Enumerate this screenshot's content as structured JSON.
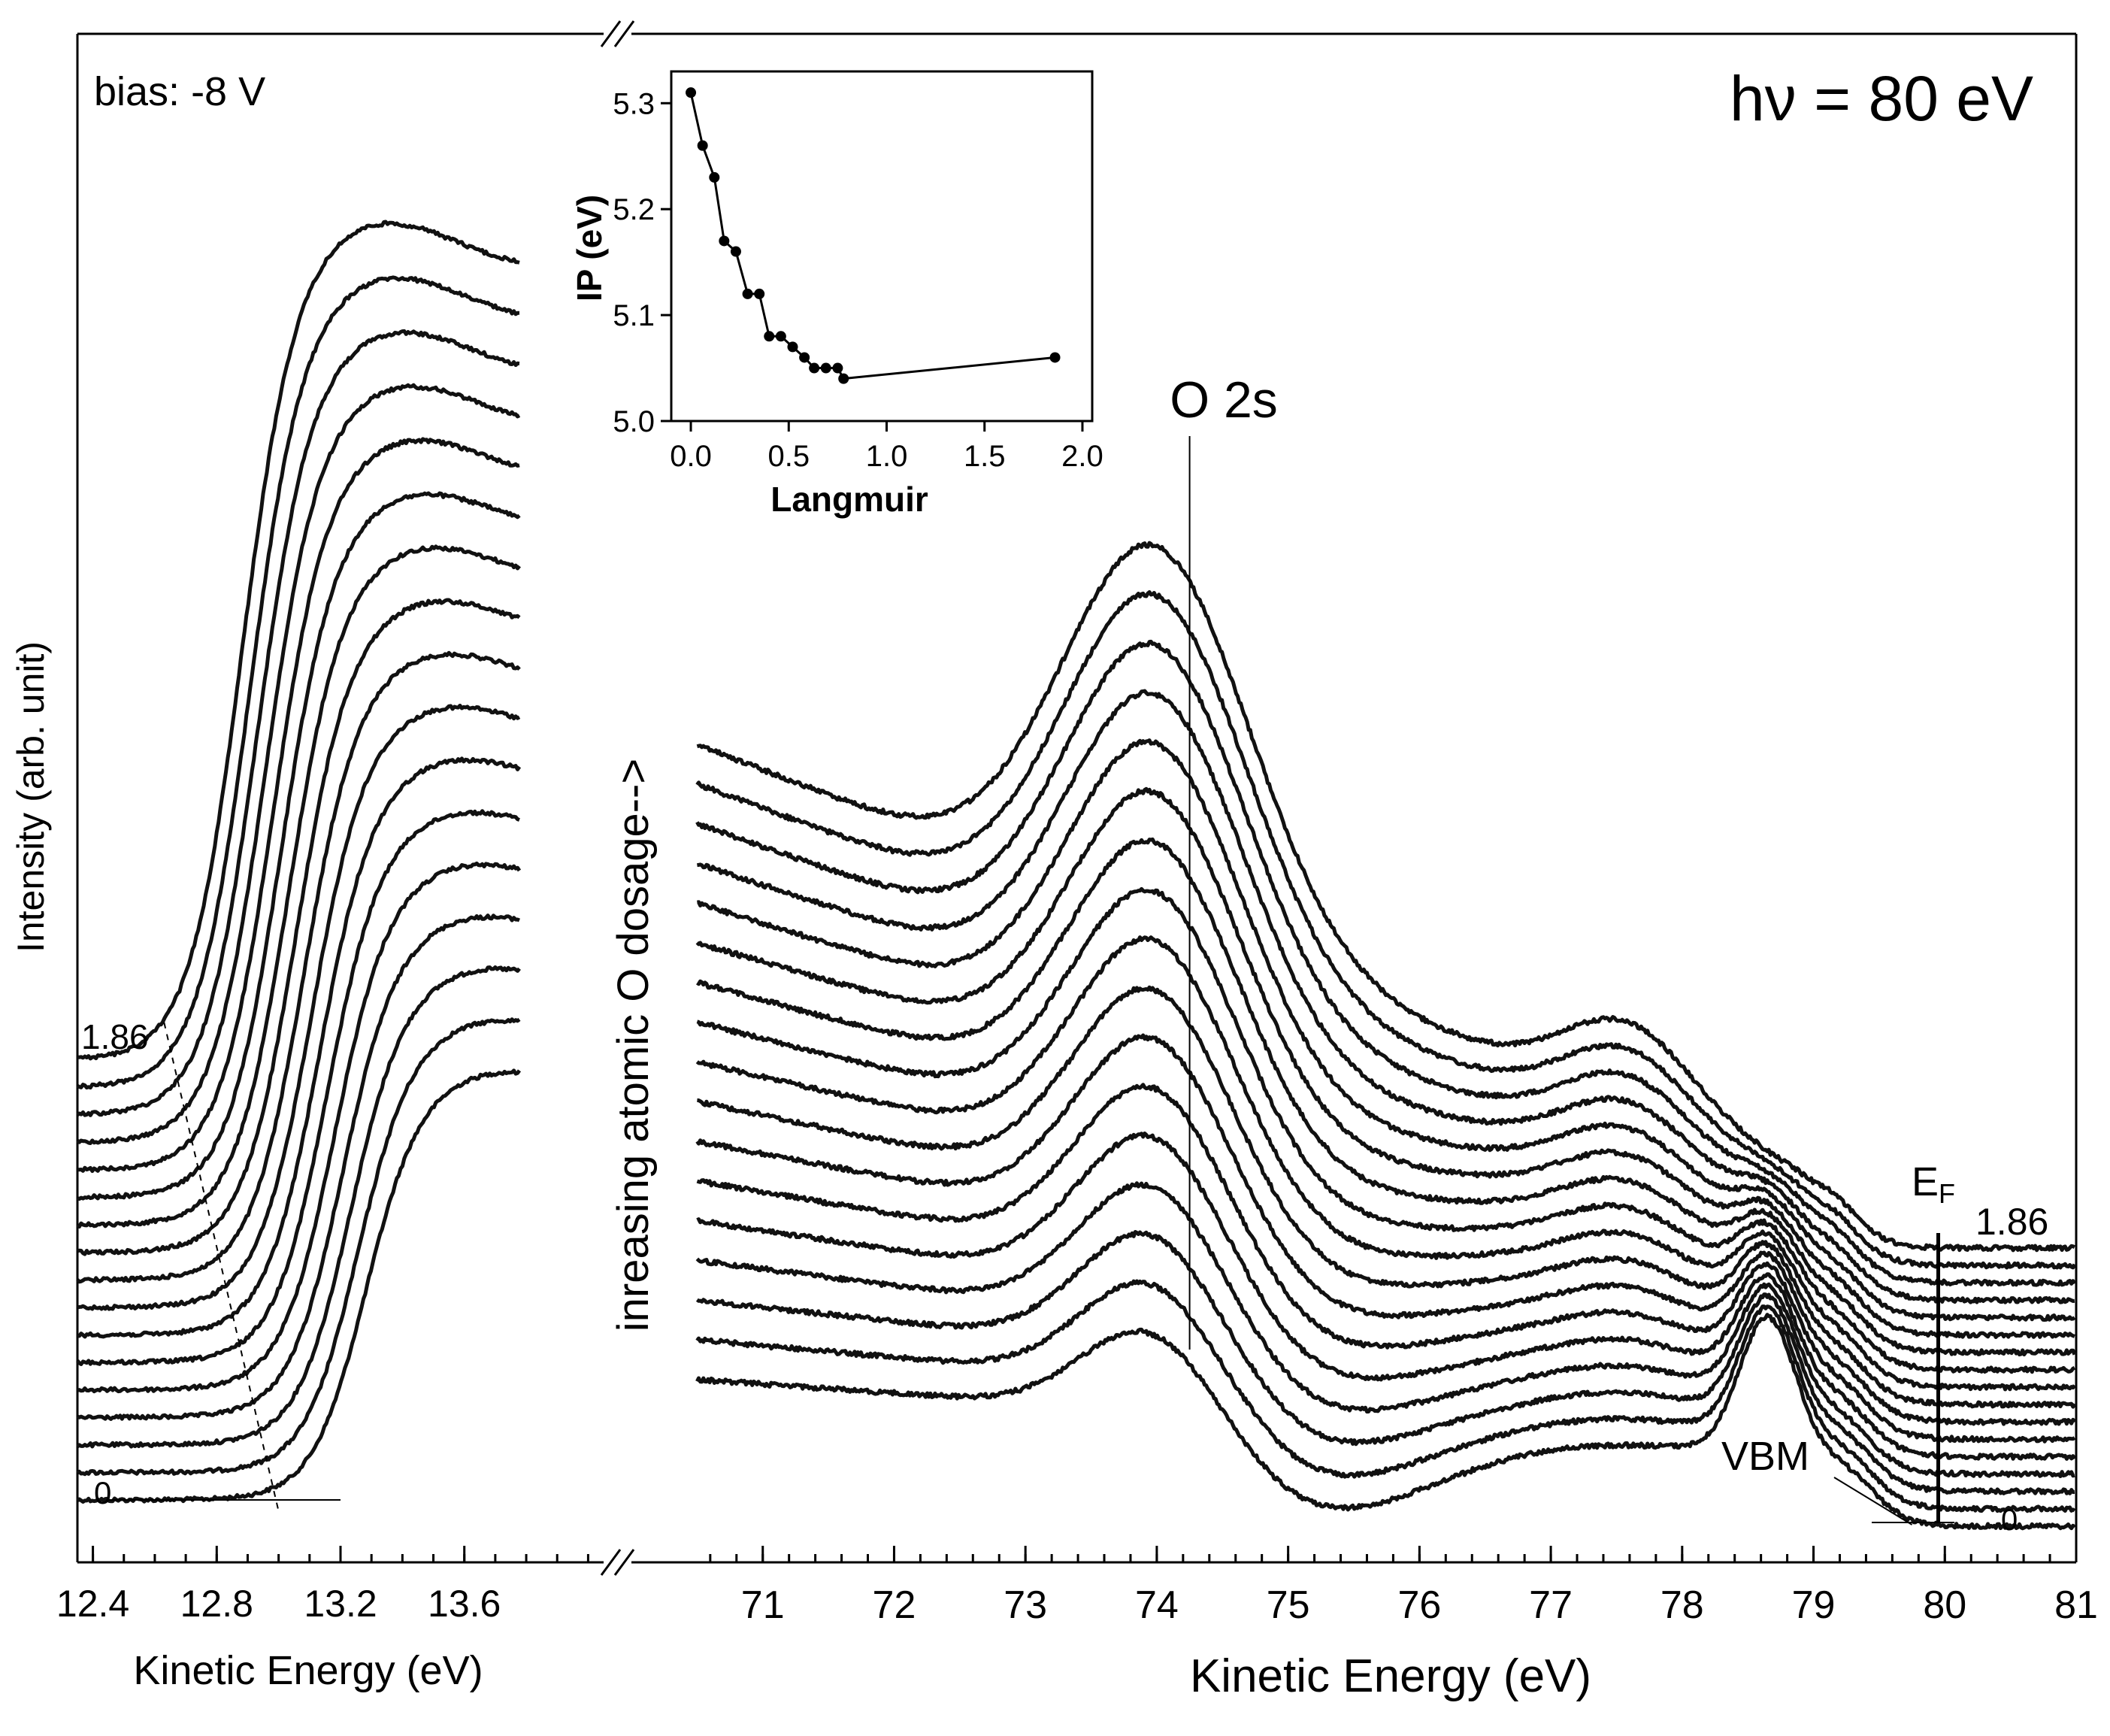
{
  "chart_data": [
    {
      "panel": "left",
      "type": "line",
      "xlabel": "Kinetic Energy (eV)",
      "ylabel": "Intensity (arb. unit)",
      "xlim": [
        12.35,
        14.05
      ],
      "xticks": [
        "12.4",
        "12.8",
        "13.2",
        "13.6"
      ],
      "annotation_bias": "bias: -8 V",
      "label_top": "1.86",
      "label_bottom": "0",
      "curve_count": 17,
      "onset_shift": 0.4,
      "series": [
        {
          "name": "0 L",
          "onset": 13.0
        },
        {
          "name": "1.86 L",
          "onset": 12.6
        }
      ]
    },
    {
      "panel": "right",
      "type": "line",
      "xlabel": "Kinetic Energy (eV)",
      "xlim": [
        70.5,
        81
      ],
      "xticks": [
        "71",
        "72",
        "73",
        "74",
        "75",
        "76",
        "77",
        "78",
        "79",
        "80",
        "81"
      ],
      "title": "hν = 80 eV",
      "ylabel_arrow": "inreasing atomic O dosage-->",
      "annotations": {
        "o2s": "O 2s",
        "o2s_x": 74.25,
        "ef_main": "E",
        "ef_sub": "F",
        "ef_x": 79.95,
        "vbm": "VBM",
        "vbm_x": 79.75,
        "label_top": "1.86",
        "label_bottom": "0"
      },
      "curve_count": 17
    },
    {
      "panel": "inset",
      "type": "line",
      "xlabel": "Langmuir",
      "ylabel": "IP (eV)",
      "xlim": [
        -0.1,
        2.05
      ],
      "ylim": [
        5.0,
        5.33
      ],
      "xticks": [
        "0.0",
        "0.5",
        "1.0",
        "1.5",
        "2.0"
      ],
      "yticks": [
        "5.0",
        "5.1",
        "5.2",
        "5.3"
      ],
      "x": [
        0.0,
        0.06,
        0.12,
        0.17,
        0.23,
        0.29,
        0.35,
        0.4,
        0.46,
        0.52,
        0.58,
        0.63,
        0.69,
        0.75,
        0.78,
        1.86
      ],
      "y": [
        5.31,
        5.26,
        5.23,
        5.17,
        5.16,
        5.12,
        5.12,
        5.08,
        5.08,
        5.07,
        5.06,
        5.05,
        5.05,
        5.05,
        5.04,
        5.06
      ]
    }
  ]
}
